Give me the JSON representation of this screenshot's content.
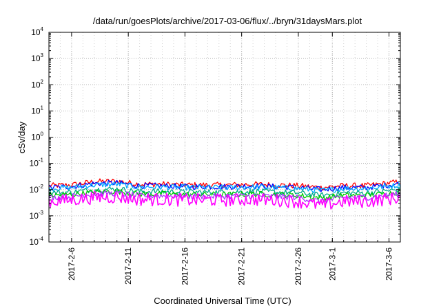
{
  "chart_data": {
    "type": "line",
    "title": "/data/run/goesPlots/archive/2017-03-06/flux/../bryn/31daysMars.plot",
    "xlabel": "Coordinated Universal Time (UTC)",
    "ylabel": "cSv/day",
    "yscale": "log",
    "ylim": [
      0.0001,
      10000
    ],
    "y_ticks": [
      {
        "base": "10",
        "exp": "-4"
      },
      {
        "base": "10",
        "exp": "-3"
      },
      {
        "base": "10",
        "exp": "-2"
      },
      {
        "base": "10",
        "exp": "-1"
      },
      {
        "base": "10",
        "exp": "0"
      },
      {
        "base": "10",
        "exp": "1"
      },
      {
        "base": "10",
        "exp": "2"
      },
      {
        "base": "10",
        "exp": "3"
      },
      {
        "base": "10",
        "exp": "4"
      }
    ],
    "xlim": [
      "2017-02-04",
      "2017-03-07"
    ],
    "x_ticks": [
      "2017-2-6",
      "2017-2-11",
      "2017-2-16",
      "2017-2-21",
      "2017-2-26",
      "2017-3-1",
      "2017-3-6"
    ],
    "x_tick_dates": [
      "2017-02-06",
      "2017-02-11",
      "2017-02-16",
      "2017-02-21",
      "2017-02-26",
      "2017-03-01",
      "2017-03-06"
    ],
    "grid": true,
    "legend": "none",
    "series": [
      {
        "color": "#ff0000",
        "points": [
          [
            "2017-02-04",
            0.014
          ],
          [
            "2017-02-06",
            0.015
          ],
          [
            "2017-02-08",
            0.02
          ],
          [
            "2017-02-10",
            0.021
          ],
          [
            "2017-02-12",
            0.016
          ],
          [
            "2017-02-14",
            0.016
          ],
          [
            "2017-02-16",
            0.015
          ],
          [
            "2017-02-18",
            0.015
          ],
          [
            "2017-02-20",
            0.015
          ],
          [
            "2017-02-22",
            0.016
          ],
          [
            "2017-02-24",
            0.015
          ],
          [
            "2017-02-26",
            0.014
          ],
          [
            "2017-02-28",
            0.012
          ],
          [
            "2017-03-02",
            0.014
          ],
          [
            "2017-03-04",
            0.014
          ],
          [
            "2017-03-07",
            0.02
          ]
        ]
      },
      {
        "color": "#0000ff",
        "points": [
          [
            "2017-02-04",
            0.012
          ],
          [
            "2017-02-06",
            0.013
          ],
          [
            "2017-02-08",
            0.017
          ],
          [
            "2017-02-10",
            0.018
          ],
          [
            "2017-02-12",
            0.014
          ],
          [
            "2017-02-14",
            0.014
          ],
          [
            "2017-02-16",
            0.013
          ],
          [
            "2017-02-18",
            0.013
          ],
          [
            "2017-02-20",
            0.013
          ],
          [
            "2017-02-22",
            0.014
          ],
          [
            "2017-02-24",
            0.013
          ],
          [
            "2017-02-26",
            0.012
          ],
          [
            "2017-02-28",
            0.01
          ],
          [
            "2017-03-02",
            0.012
          ],
          [
            "2017-03-04",
            0.012
          ],
          [
            "2017-03-07",
            0.017
          ]
        ]
      },
      {
        "color": "#00aaff",
        "points": [
          [
            "2017-02-04",
            0.011
          ],
          [
            "2017-02-06",
            0.012
          ],
          [
            "2017-02-08",
            0.015
          ],
          [
            "2017-02-10",
            0.016
          ],
          [
            "2017-02-12",
            0.0125
          ],
          [
            "2017-02-14",
            0.0125
          ],
          [
            "2017-02-16",
            0.012
          ],
          [
            "2017-02-18",
            0.012
          ],
          [
            "2017-02-20",
            0.012
          ],
          [
            "2017-02-22",
            0.0125
          ],
          [
            "2017-02-24",
            0.012
          ],
          [
            "2017-02-26",
            0.011
          ],
          [
            "2017-02-28",
            0.009
          ],
          [
            "2017-03-02",
            0.011
          ],
          [
            "2017-03-04",
            0.011
          ],
          [
            "2017-03-07",
            0.015
          ]
        ]
      },
      {
        "color": "#00aa88",
        "points": [
          [
            "2017-02-04",
            0.0075
          ],
          [
            "2017-02-06",
            0.008
          ],
          [
            "2017-02-08",
            0.01
          ],
          [
            "2017-02-10",
            0.0105
          ],
          [
            "2017-02-12",
            0.0085
          ],
          [
            "2017-02-14",
            0.0085
          ],
          [
            "2017-02-16",
            0.008
          ],
          [
            "2017-02-18",
            0.008
          ],
          [
            "2017-02-20",
            0.008
          ],
          [
            "2017-02-22",
            0.0085
          ],
          [
            "2017-02-24",
            0.008
          ],
          [
            "2017-02-26",
            0.0075
          ],
          [
            "2017-02-28",
            0.006
          ],
          [
            "2017-03-02",
            0.0075
          ],
          [
            "2017-03-04",
            0.0075
          ],
          [
            "2017-03-07",
            0.01
          ]
        ]
      },
      {
        "color": "#00cc00",
        "points": [
          [
            "2017-02-04",
            0.006
          ],
          [
            "2017-02-06",
            0.0065
          ],
          [
            "2017-02-08",
            0.008
          ],
          [
            "2017-02-10",
            0.0085
          ],
          [
            "2017-02-12",
            0.0068
          ],
          [
            "2017-02-14",
            0.0068
          ],
          [
            "2017-02-16",
            0.0065
          ],
          [
            "2017-02-18",
            0.0065
          ],
          [
            "2017-02-20",
            0.0065
          ],
          [
            "2017-02-22",
            0.0068
          ],
          [
            "2017-02-24",
            0.0065
          ],
          [
            "2017-02-26",
            0.006
          ],
          [
            "2017-02-28",
            0.0048
          ],
          [
            "2017-03-02",
            0.006
          ],
          [
            "2017-03-04",
            0.006
          ],
          [
            "2017-03-07",
            0.008
          ]
        ]
      },
      {
        "color": "#aa33ff",
        "points": [
          [
            "2017-02-04",
            0.005
          ],
          [
            "2017-02-06",
            0.0055
          ],
          [
            "2017-02-08",
            0.0068
          ],
          [
            "2017-02-10",
            0.0072
          ],
          [
            "2017-02-12",
            0.0058
          ],
          [
            "2017-02-14",
            0.0058
          ],
          [
            "2017-02-16",
            0.0055
          ],
          [
            "2017-02-18",
            0.0055
          ],
          [
            "2017-02-20",
            0.0055
          ],
          [
            "2017-02-22",
            0.0058
          ],
          [
            "2017-02-24",
            0.0055
          ],
          [
            "2017-02-26",
            0.005
          ],
          [
            "2017-02-28",
            0.0035
          ],
          [
            "2017-03-02",
            0.005
          ],
          [
            "2017-03-04",
            0.005
          ],
          [
            "2017-03-07",
            0.0068
          ]
        ]
      },
      {
        "color": "#ff00ff",
        "points": [
          [
            "2017-02-04",
            0.0035
          ],
          [
            "2017-02-06",
            0.004
          ],
          [
            "2017-02-08",
            0.005
          ],
          [
            "2017-02-10",
            0.0052
          ],
          [
            "2017-02-12",
            0.0042
          ],
          [
            "2017-02-14",
            0.0042
          ],
          [
            "2017-02-16",
            0.004
          ],
          [
            "2017-02-18",
            0.004
          ],
          [
            "2017-02-20",
            0.004
          ],
          [
            "2017-02-22",
            0.0042
          ],
          [
            "2017-02-24",
            0.004
          ],
          [
            "2017-02-26",
            0.0035
          ],
          [
            "2017-02-28",
            0.0025
          ],
          [
            "2017-03-02",
            0.0035
          ],
          [
            "2017-03-04",
            0.0035
          ],
          [
            "2017-03-07",
            0.005
          ]
        ]
      }
    ]
  }
}
